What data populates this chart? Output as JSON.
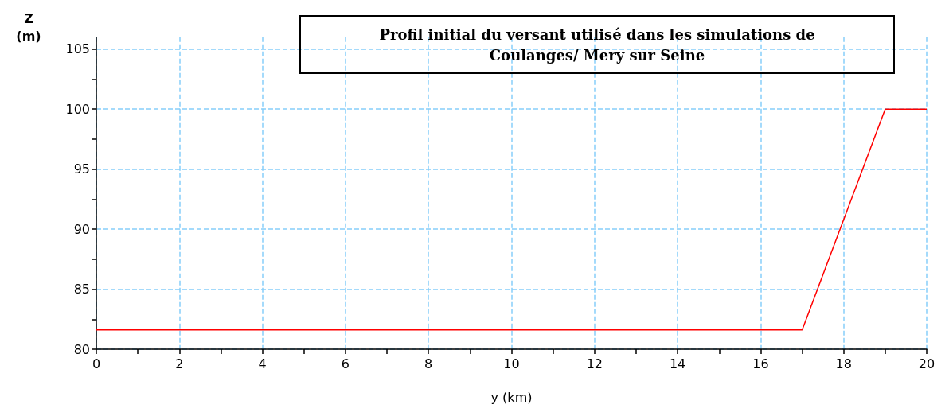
{
  "chart_data": {
    "type": "line",
    "title": "Profil initial du versant utilisé dans les simulations de\nCoulanges/ Mery sur Seine",
    "xlabel": "y (km)",
    "ylabel": "Z\n(m)",
    "series": [
      {
        "color": "#ff0000",
        "x": [
          0,
          17,
          19,
          20
        ],
        "values": [
          81.6,
          81.6,
          100,
          100
        ]
      }
    ],
    "xlim": [
      0,
      20
    ],
    "xticks": [
      0,
      2,
      4,
      6,
      8,
      10,
      12,
      14,
      16,
      18,
      20
    ],
    "ylim": [
      80,
      106
    ],
    "yticks": [
      80,
      85,
      90,
      95,
      100,
      105
    ],
    "grid": true,
    "marker": "none",
    "line_style": "solid"
  }
}
